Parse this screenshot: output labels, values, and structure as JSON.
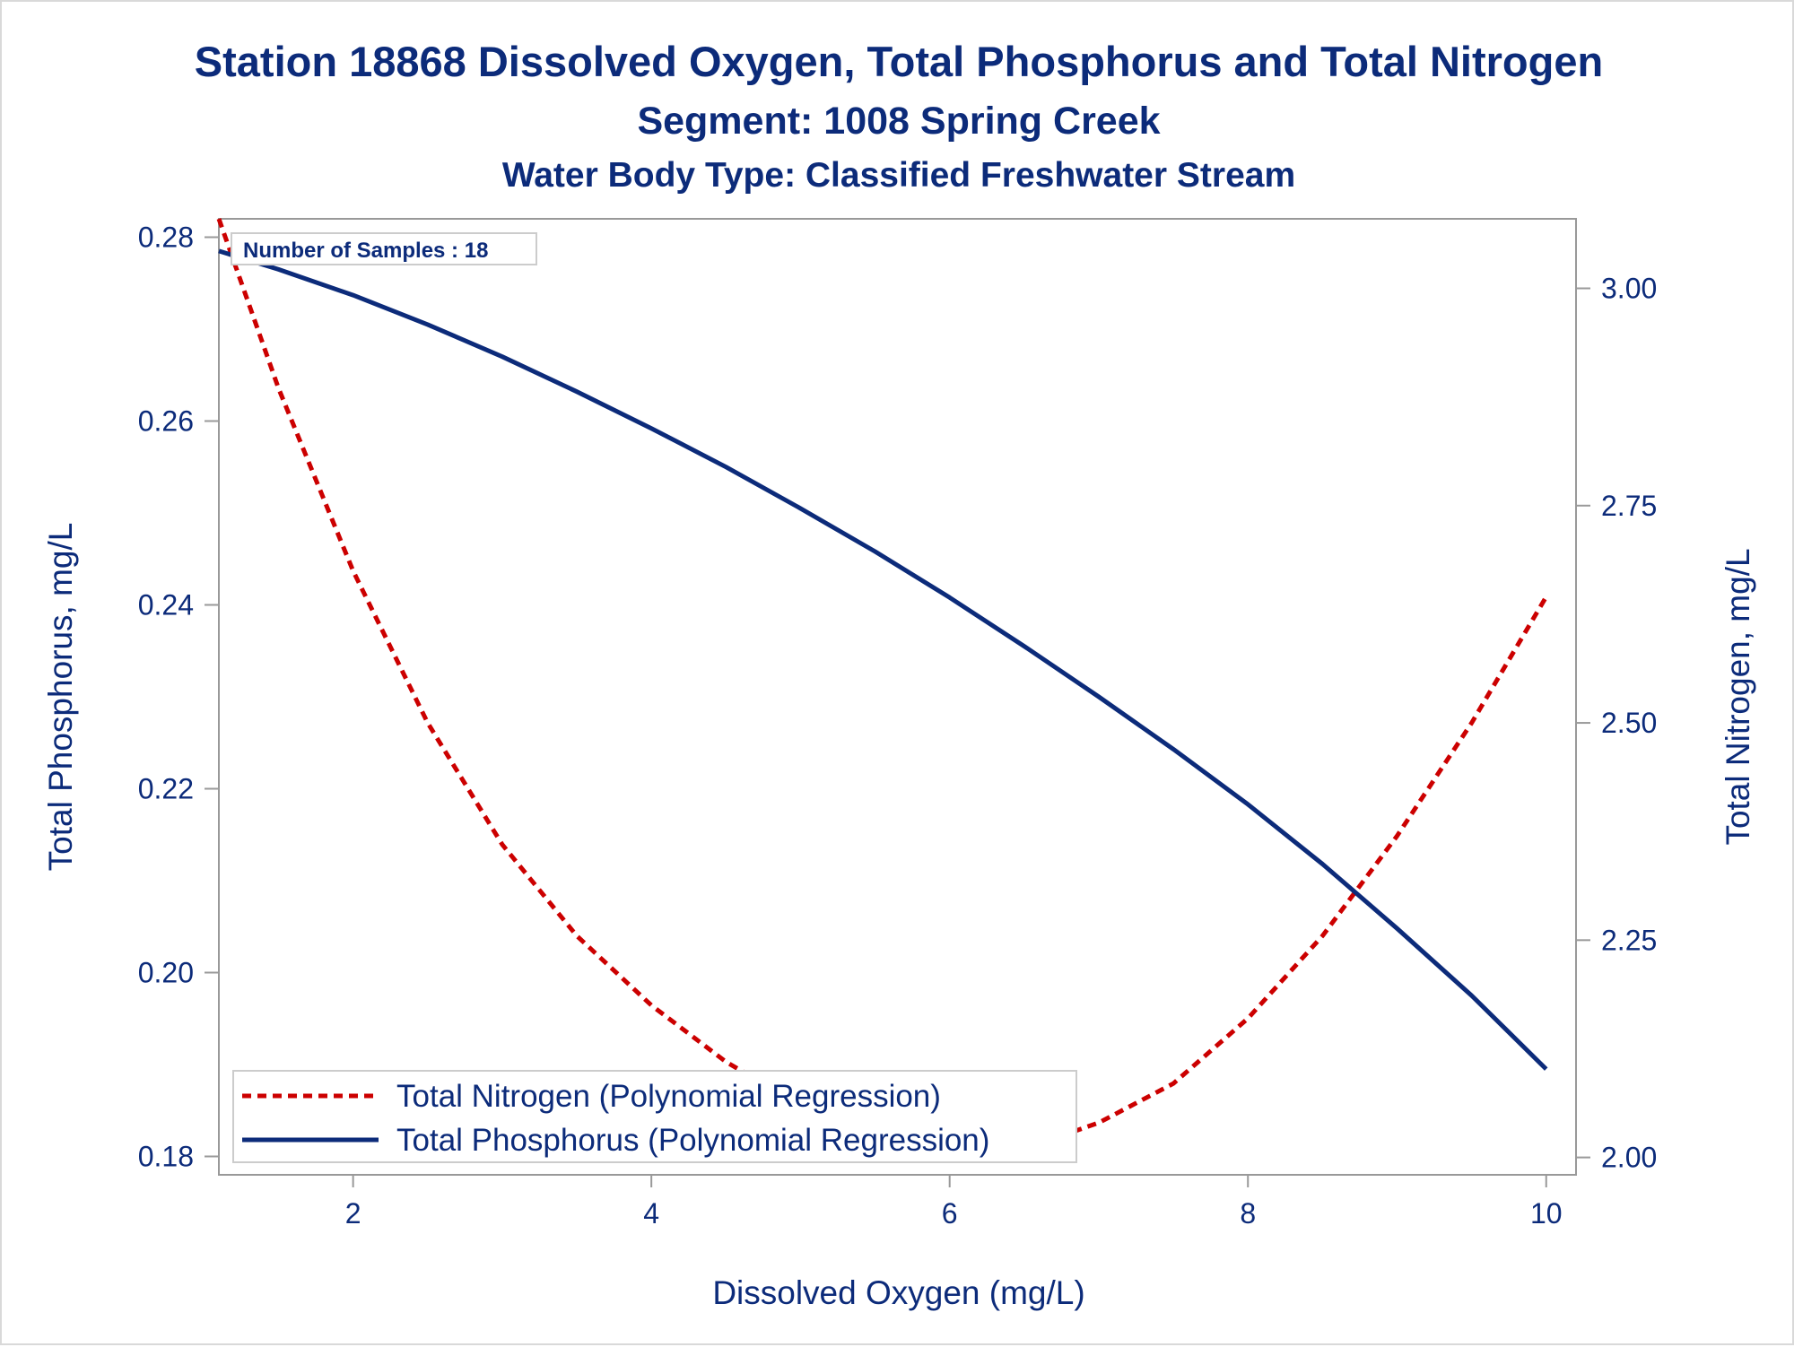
{
  "chart_data": {
    "type": "line",
    "title": "Station 18868  Dissolved Oxygen, Total Phosphorus and Total Nitrogen",
    "subtitle": "Segment: 1008  Spring Creek",
    "subtitle2": "Water Body Type: Classified Freshwater Stream",
    "annotation": "Number of Samples : 18",
    "xlabel": "Dissolved Oxygen (mg/L)",
    "ylabel_left": "Total Phosphorus, mg/L",
    "ylabel_right": "Total Nitrogen, mg/L",
    "xlim": [
      1.1,
      10.2
    ],
    "ylim_left": [
      0.178,
      0.282
    ],
    "ylim_right": [
      1.98,
      3.08
    ],
    "xticks": [
      "2",
      "4",
      "6",
      "8",
      "10"
    ],
    "yticks_left": [
      "0.18",
      "0.20",
      "0.22",
      "0.24",
      "0.26",
      "0.28"
    ],
    "yticks_right": [
      "2.00",
      "2.25",
      "2.50",
      "2.75",
      "3.00"
    ],
    "grid": false,
    "legend_position": "bottom-left inside",
    "series": [
      {
        "name": "Total Nitrogen (Polynomial Regression)",
        "axis": "right",
        "style": "dashed",
        "color": "#cc0000",
        "x": [
          1.1,
          1.5,
          2.0,
          2.5,
          3.0,
          3.5,
          4.0,
          4.5,
          5.0,
          5.5,
          6.0,
          6.15,
          6.5,
          7.0,
          7.5,
          8.0,
          8.5,
          9.0,
          9.5,
          10.0
        ],
        "y": [
          3.08,
          2.885,
          2.675,
          2.5,
          2.36,
          2.255,
          2.175,
          2.11,
          2.06,
          2.025,
          2.005,
          2.005,
          2.01,
          2.04,
          2.085,
          2.16,
          2.255,
          2.37,
          2.5,
          2.645
        ]
      },
      {
        "name": "Total Phosphorus (Polynomial Regression)",
        "axis": "left",
        "style": "solid",
        "color": "#0c2b7a",
        "x": [
          1.1,
          1.5,
          2.0,
          2.5,
          3.0,
          3.5,
          4.0,
          4.5,
          5.0,
          5.5,
          6.0,
          6.5,
          7.0,
          7.5,
          8.0,
          8.5,
          9.0,
          9.5,
          10.0
        ],
        "y": [
          0.2785,
          0.2765,
          0.2737,
          0.2705,
          0.267,
          0.2632,
          0.2592,
          0.255,
          0.2505,
          0.2458,
          0.2408,
          0.2355,
          0.23,
          0.2243,
          0.2183,
          0.2118,
          0.2048,
          0.1975,
          0.1895
        ]
      }
    ]
  }
}
